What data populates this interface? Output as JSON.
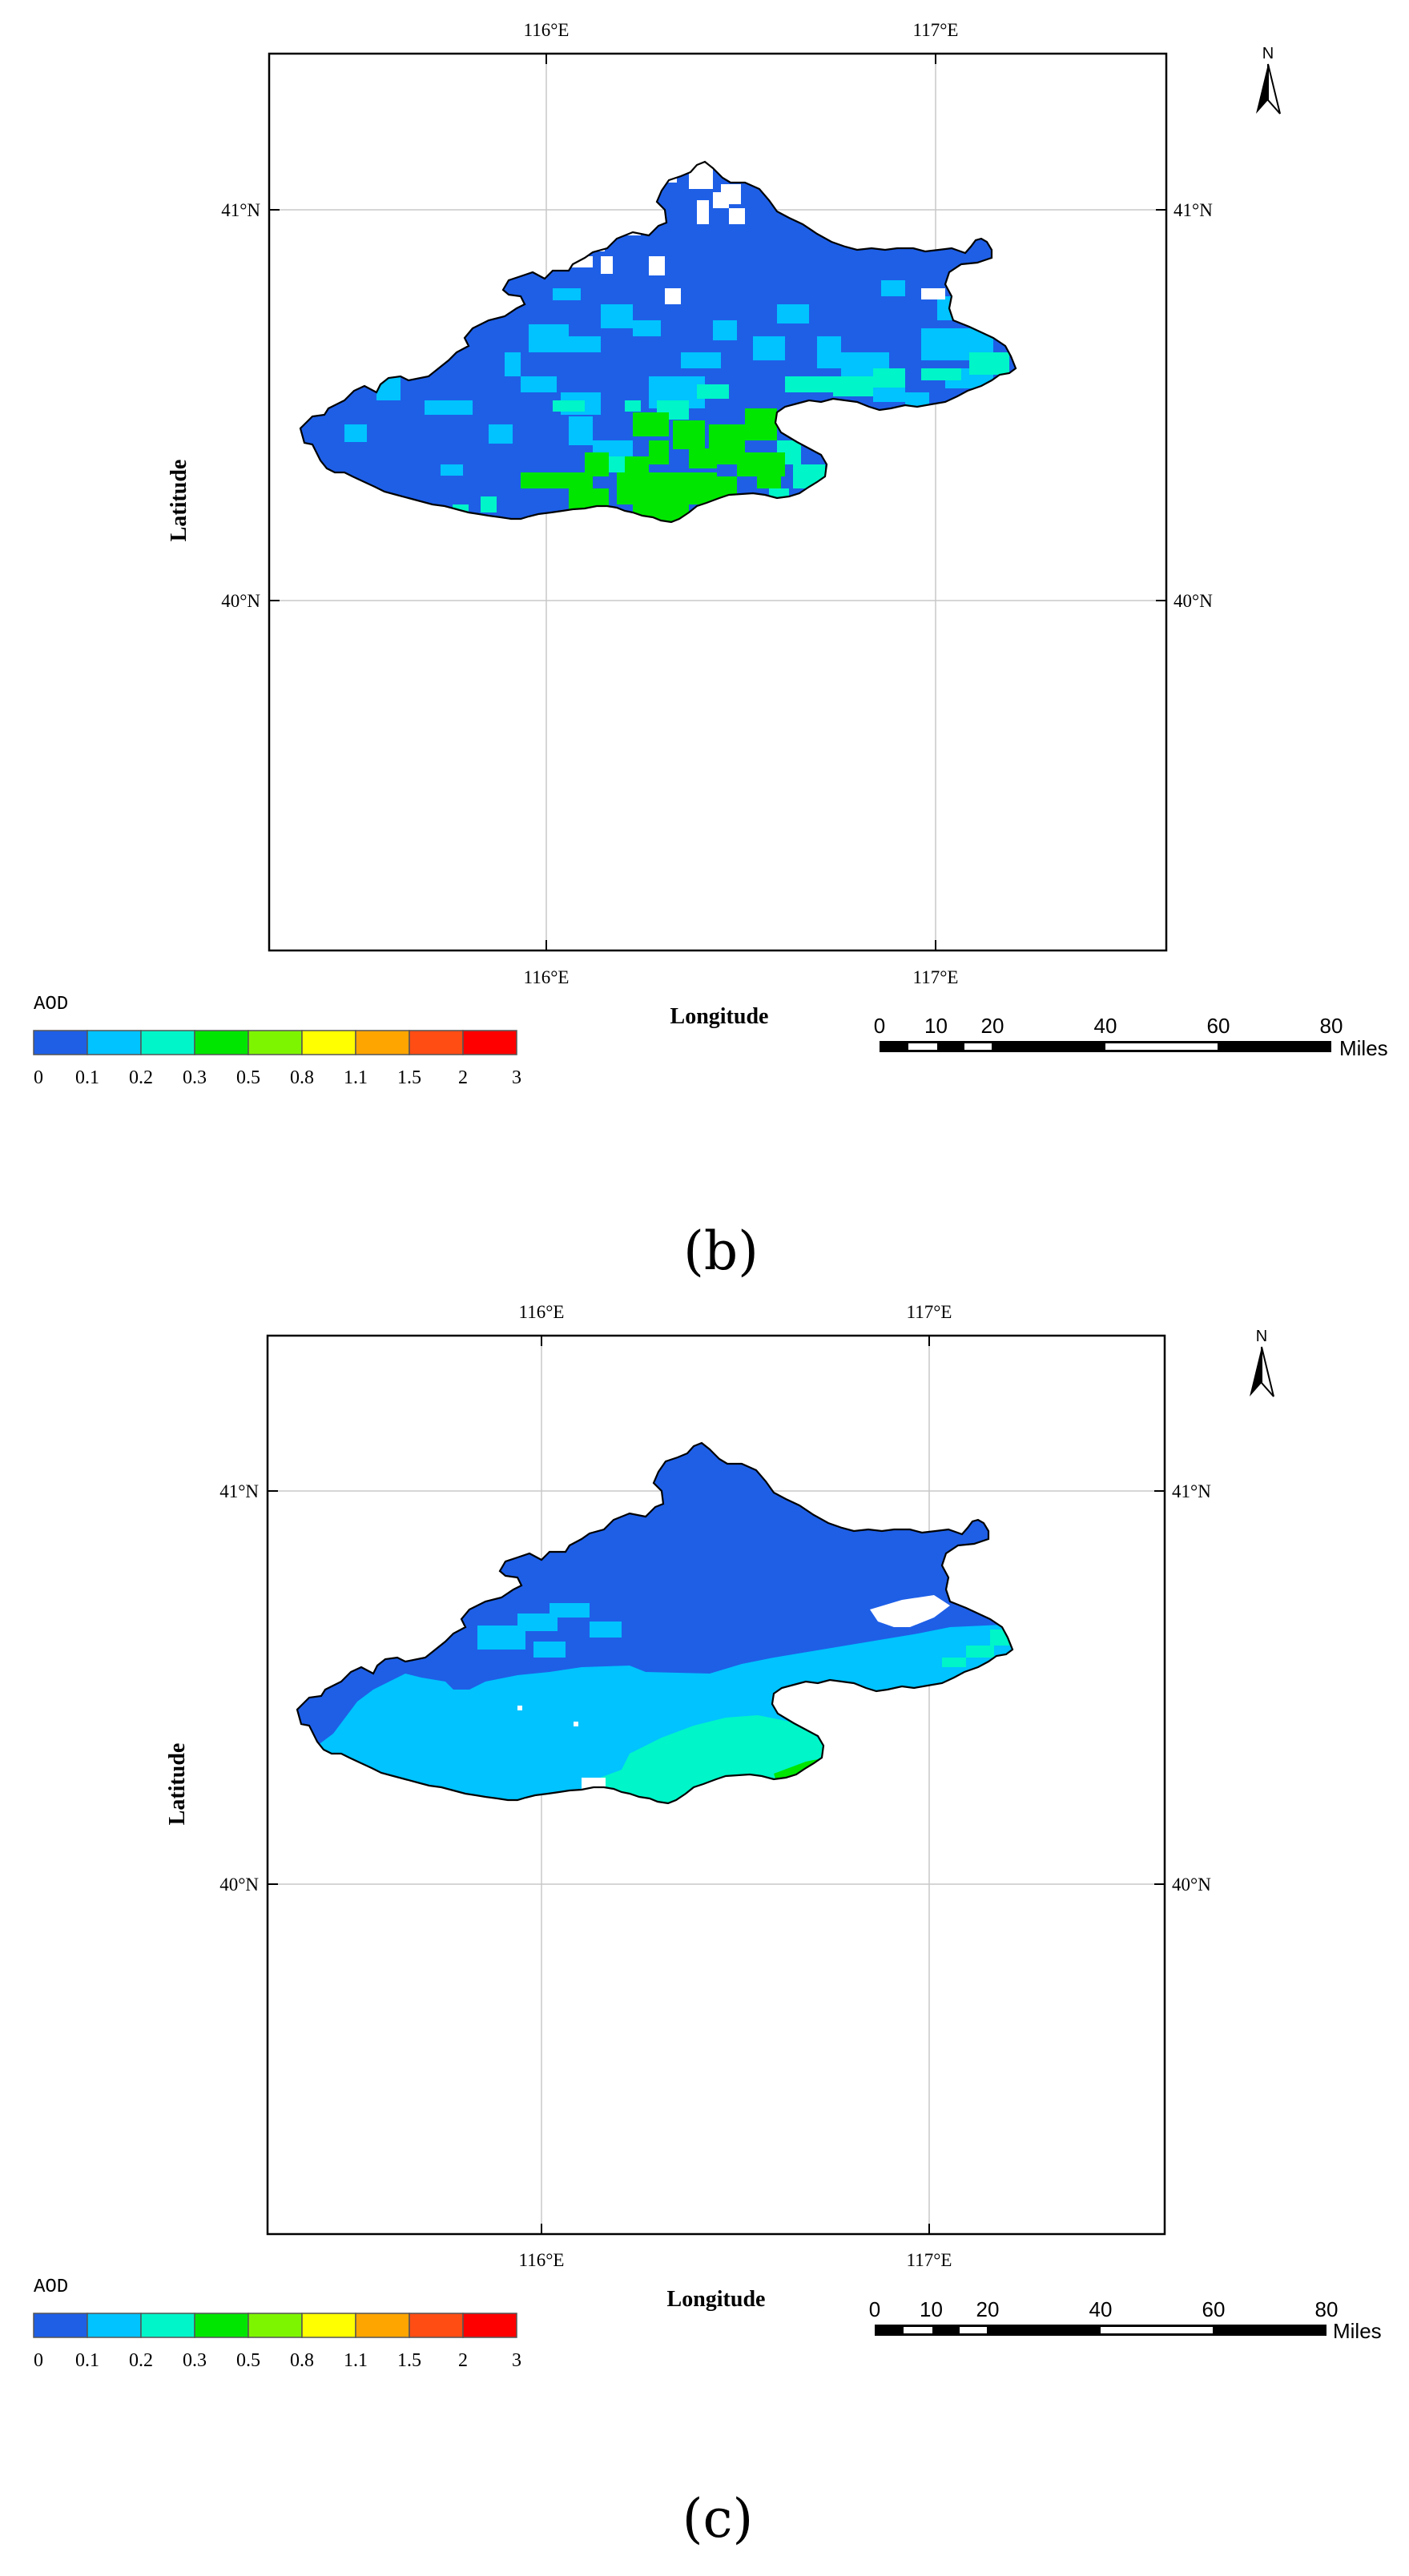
{
  "panels": [
    {
      "label": "(b)",
      "x_ticks_top": [
        "116°E",
        "117°E"
      ],
      "x_ticks_bottom": [
        "116°E",
        "117°E"
      ],
      "y_ticks_left": [
        "41°N",
        "40°N"
      ],
      "y_ticks_right": [
        "41°N",
        "40°N"
      ],
      "xlabel": "Longitude",
      "ylabel": "Latitude",
      "north_label": "N",
      "legend": {
        "title": "AOD",
        "breaks": [
          "0",
          "0.1",
          "0.2",
          "0.3",
          "0.5",
          "0.8",
          "1.1",
          "1.5",
          "2",
          "3"
        ],
        "colors": [
          "#1e5fe6",
          "#00c3ff",
          "#00f5c8",
          "#00e600",
          "#7ef500",
          "#ffff00",
          "#ffa500",
          "#ff4d14",
          "#ff0000"
        ]
      },
      "scale_bar": {
        "labels": [
          "0",
          "10",
          "20",
          "40",
          "60",
          "80"
        ],
        "unit": "Miles"
      }
    },
    {
      "label": "(c)",
      "x_ticks_top": [
        "116°E",
        "117°E"
      ],
      "x_ticks_bottom": [
        "116°E",
        "117°E"
      ],
      "y_ticks_left": [
        "41°N",
        "40°N"
      ],
      "y_ticks_right": [
        "41°N",
        "40°N"
      ],
      "xlabel": "Longitude",
      "ylabel": "Latitude",
      "north_label": "N",
      "legend": {
        "title": "AOD",
        "breaks": [
          "0",
          "0.1",
          "0.2",
          "0.3",
          "0.5",
          "0.8",
          "1.1",
          "1.5",
          "2",
          "3"
        ],
        "colors": [
          "#1e5fe6",
          "#00c3ff",
          "#00f5c8",
          "#00e600",
          "#7ef500",
          "#ffff00",
          "#ffa500",
          "#ff4d14",
          "#ff0000"
        ]
      },
      "scale_bar": {
        "labels": [
          "0",
          "10",
          "20",
          "40",
          "60",
          "80"
        ],
        "unit": "Miles"
      }
    }
  ],
  "colors": {
    "aod_low": "#1e5fe6",
    "aod_mid": "#00c3ff",
    "aod_teal": "#00f5c8",
    "aod_green": "#00e600",
    "gridline": "#c8c8c8",
    "outline": "#000000"
  }
}
